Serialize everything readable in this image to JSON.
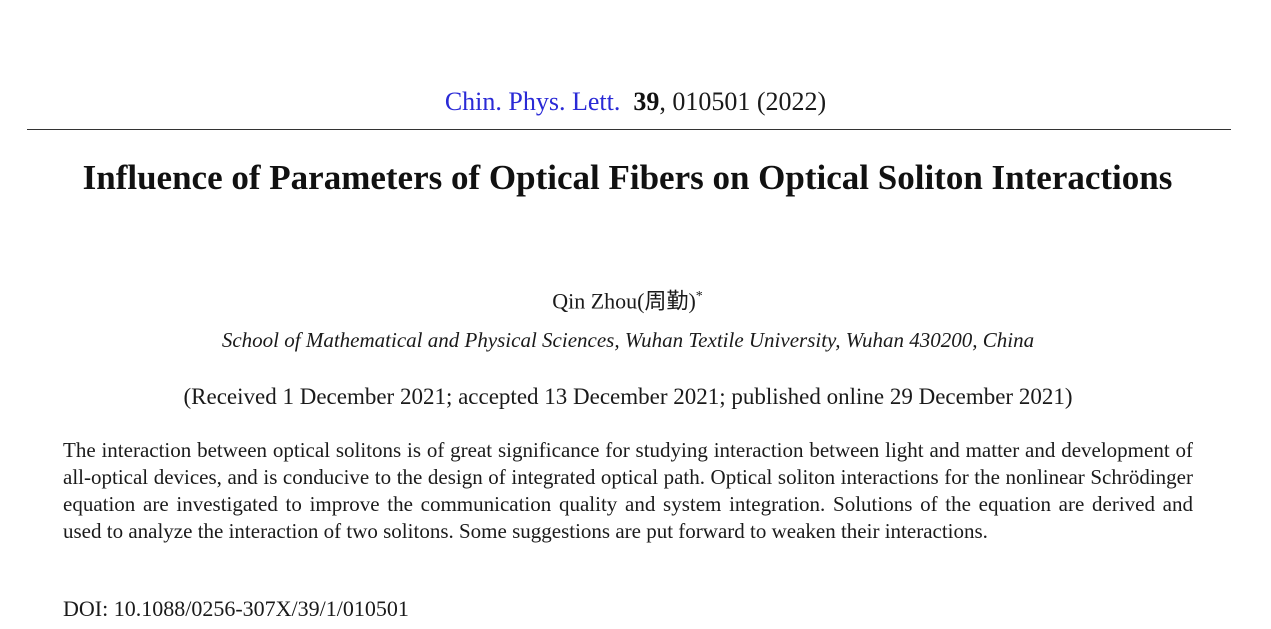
{
  "header": {
    "journal": "Chin. Phys. Lett.",
    "volume": "39",
    "article_and_year": ", 010501 (2022)"
  },
  "paper": {
    "title": "Influence of Parameters of Optical Fibers on Optical Soliton Interactions",
    "author": "Qin Zhou(周勤)",
    "author_mark": "*",
    "affiliation": "School of Mathematical and Physical Sciences, Wuhan Textile University, Wuhan 430200, China",
    "dates": "(Received 1 December 2021; accepted 13 December 2021; published online 29 December 2021)",
    "abstract": "The interaction between optical solitons is of great significance for studying interaction between light and matter and development of all-optical devices, and is conducive to the design of integrated optical path. Optical soliton interactions for the nonlinear Schrödinger equation are investigated to improve the communication quality and system integration. Solutions of the equation are derived and used to analyze the interaction of two solitons. Some suggestions are put forward to weaken their interactions.",
    "doi": "DOI: 10.1088/0256-307X/39/1/010501"
  },
  "colors": {
    "journal_link": "#2a2ad6",
    "text": "#1a1a1a"
  }
}
